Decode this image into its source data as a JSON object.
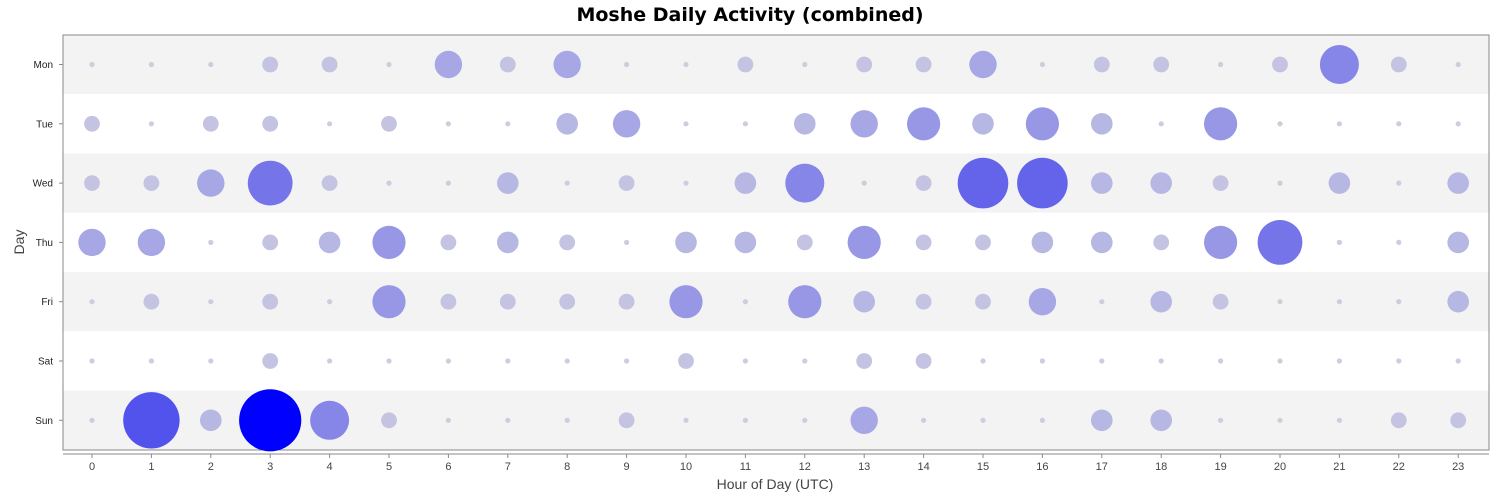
{
  "chart_data": {
    "type": "scatter",
    "title": "Moshe Daily Activity (combined)",
    "xlabel": "Hour of Day (UTC)",
    "ylabel": "Day",
    "days": [
      "Mon",
      "Tue",
      "Wed",
      "Thu",
      "Fri",
      "Sat",
      "Sun"
    ],
    "hours": [
      "0",
      "1",
      "2",
      "3",
      "4",
      "5",
      "6",
      "7",
      "8",
      "9",
      "10",
      "11",
      "12",
      "13",
      "14",
      "15",
      "16",
      "17",
      "18",
      "19",
      "20",
      "21",
      "22",
      "23"
    ],
    "xlim": [
      -0.5,
      23.5
    ],
    "legend": "none",
    "size_scale": "activity level 0-10 (relative bubble size)",
    "values": [
      [
        0,
        0,
        0,
        2,
        2,
        0,
        4,
        2,
        4,
        0,
        0,
        2,
        0,
        2,
        2,
        4,
        0,
        2,
        2,
        0,
        2,
        6,
        2,
        0
      ],
      [
        2,
        0,
        2,
        2,
        0,
        2,
        0,
        0,
        3,
        4,
        0,
        0,
        3,
        4,
        5,
        3,
        5,
        3,
        0,
        5,
        0,
        0,
        0,
        0
      ],
      [
        2,
        2,
        4,
        7,
        2,
        0,
        0,
        3,
        0,
        2,
        0,
        3,
        6,
        0,
        2,
        8,
        8,
        3,
        3,
        2,
        0,
        3,
        0,
        3
      ],
      [
        4,
        4,
        0,
        2,
        3,
        5,
        2,
        3,
        2,
        0,
        3,
        3,
        2,
        5,
        2,
        2,
        3,
        3,
        2,
        5,
        7,
        0,
        0,
        3
      ],
      [
        0,
        2,
        0,
        2,
        0,
        5,
        2,
        2,
        2,
        2,
        5,
        0,
        5,
        3,
        2,
        2,
        4,
        0,
        3,
        2,
        0,
        0,
        0,
        3
      ],
      [
        0,
        0,
        0,
        2,
        0,
        0,
        0,
        0,
        0,
        0,
        2,
        0,
        0,
        2,
        2,
        0,
        0,
        0,
        0,
        0,
        0,
        0,
        0,
        0
      ],
      [
        0,
        9,
        3,
        10,
        6,
        2,
        0,
        0,
        0,
        2,
        0,
        0,
        0,
        4,
        0,
        0,
        0,
        3,
        3,
        0,
        0,
        0,
        2,
        2
      ]
    ]
  }
}
